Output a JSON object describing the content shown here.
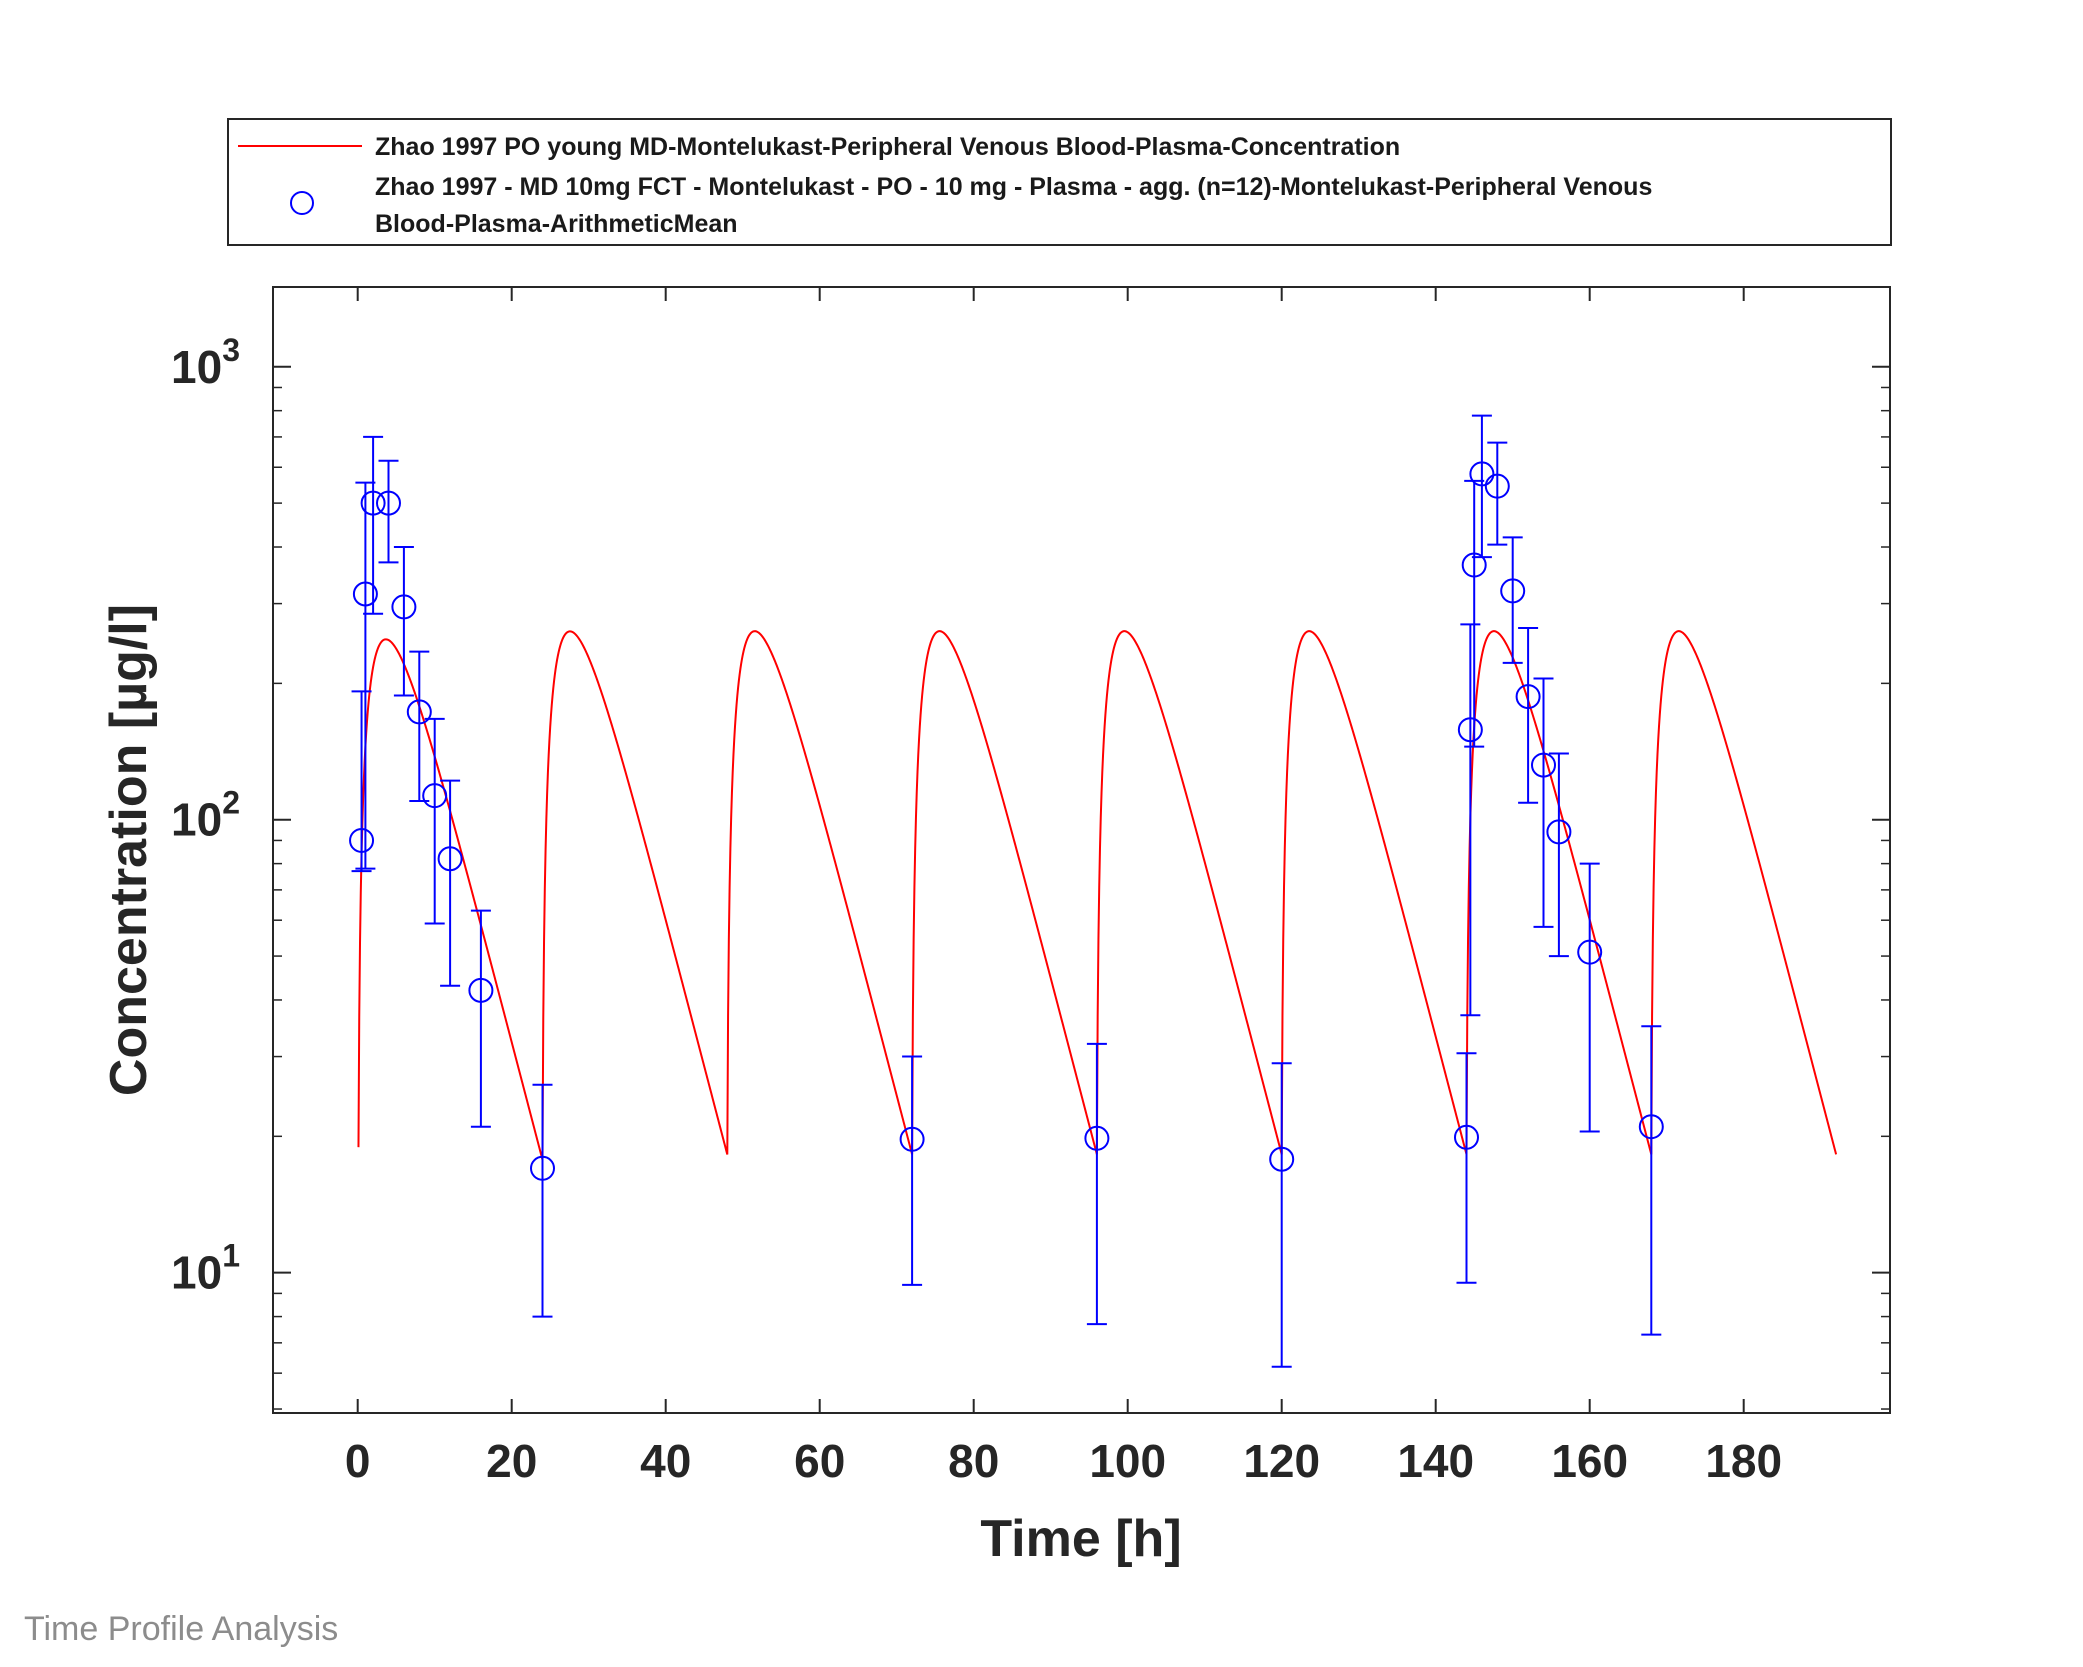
{
  "chart_data": {
    "type": "line",
    "title": "",
    "xlabel": "Time [h]",
    "ylabel": "Concentration [µg/l]",
    "xlim": [
      -11,
      199
    ],
    "ylim": [
      4.9,
      1500
    ],
    "y_scale": "log",
    "x_ticks": [
      0,
      20,
      40,
      60,
      80,
      100,
      120,
      140,
      160,
      180
    ],
    "y_ticks": [
      {
        "base": "10",
        "exp": "1",
        "value": 10
      },
      {
        "base": "10",
        "exp": "2",
        "value": 100
      },
      {
        "base": "10",
        "exp": "3",
        "value": 1000
      }
    ],
    "grid": false,
    "legend_position": "top (outside plot)",
    "series": [
      {
        "name": "Zhao 1997 PO young MD-Montelukast-Peripheral Venous Blood-Plasma-Concentration",
        "kind": "simulation-line",
        "color": "#ff0000",
        "dosing_times": [
          0,
          24,
          48,
          72,
          96,
          120,
          144,
          168
        ],
        "t_max": 192,
        "model": {
          "ka": 0.45,
          "ke": 0.15,
          "scale": 650
        }
      },
      {
        "name": "Zhao 1997 - MD 10mg FCT - Montelukast - PO - 10 mg - Plasma - agg. (n=12)-Montelukast-Peripheral Venous Blood-Plasma-ArithmeticMean",
        "kind": "observed-mean-with-error",
        "color": "#0000ff",
        "marker": "circle",
        "points": [
          {
            "x": 0.5,
            "y": 90,
            "lo": 77,
            "hi": 192
          },
          {
            "x": 1,
            "y": 315,
            "lo": 78,
            "hi": 555
          },
          {
            "x": 2,
            "y": 500,
            "lo": 285,
            "hi": 700
          },
          {
            "x": 4,
            "y": 500,
            "lo": 370,
            "hi": 620
          },
          {
            "x": 6,
            "y": 295,
            "lo": 188,
            "hi": 400
          },
          {
            "x": 8,
            "y": 173,
            "lo": 110,
            "hi": 235
          },
          {
            "x": 10,
            "y": 113,
            "lo": 59,
            "hi": 167
          },
          {
            "x": 12,
            "y": 82,
            "lo": 43,
            "hi": 122
          },
          {
            "x": 16,
            "y": 42,
            "lo": 21,
            "hi": 63
          },
          {
            "x": 24,
            "y": 17,
            "lo": 8,
            "hi": 26
          },
          {
            "x": 72,
            "y": 19.7,
            "lo": 9.4,
            "hi": 30
          },
          {
            "x": 96,
            "y": 19.8,
            "lo": 7.7,
            "hi": 32
          },
          {
            "x": 120,
            "y": 17.8,
            "lo": 6.2,
            "hi": 29
          },
          {
            "x": 144,
            "y": 19.9,
            "lo": 9.5,
            "hi": 30.5
          },
          {
            "x": 144.5,
            "y": 158,
            "lo": 37,
            "hi": 270
          },
          {
            "x": 145,
            "y": 365,
            "lo": 145,
            "hi": 560
          },
          {
            "x": 146,
            "y": 580,
            "lo": 380,
            "hi": 780
          },
          {
            "x": 148,
            "y": 545,
            "lo": 405,
            "hi": 680
          },
          {
            "x": 150,
            "y": 320,
            "lo": 222,
            "hi": 420
          },
          {
            "x": 152,
            "y": 187,
            "lo": 109,
            "hi": 265
          },
          {
            "x": 154,
            "y": 132,
            "lo": 58,
            "hi": 205
          },
          {
            "x": 156,
            "y": 94,
            "lo": 50,
            "hi": 140
          },
          {
            "x": 160,
            "y": 51,
            "lo": 20.5,
            "hi": 80
          },
          {
            "x": 168,
            "y": 21,
            "lo": 7.3,
            "hi": 35
          }
        ]
      }
    ]
  },
  "legend": {
    "entries": [
      {
        "lines": [
          "Zhao 1997 PO young MD-Montelukast-Peripheral Venous Blood-Plasma-Concentration"
        ]
      },
      {
        "lines": [
          "Zhao 1997 - MD 10mg FCT - Montelukast - PO - 10 mg - Plasma - agg. (n=12)-Montelukast-Peripheral Venous",
          "Blood-Plasma-ArithmeticMean"
        ]
      }
    ]
  },
  "footer": "Time Profile Analysis"
}
